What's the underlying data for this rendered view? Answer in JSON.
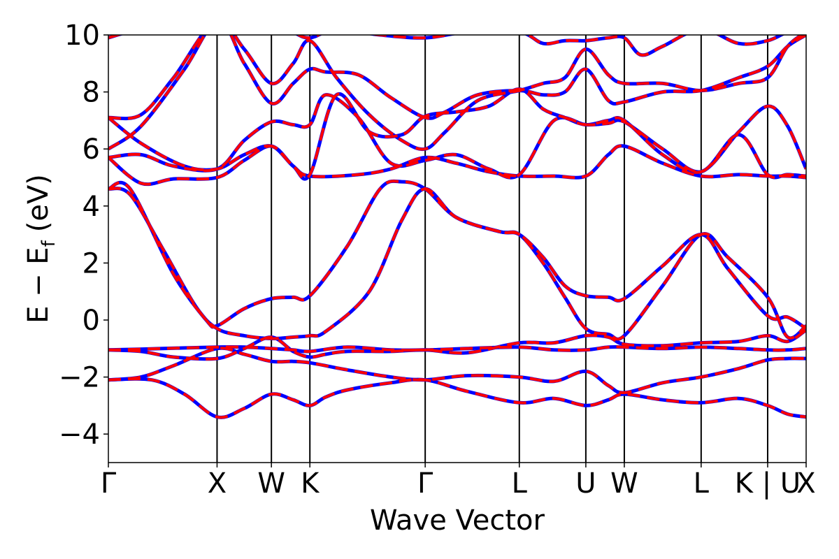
{
  "chart_data": {
    "type": "line",
    "title": "",
    "xlabel": "Wave Vector",
    "ylabel": "E − E_f (eV)",
    "ylabel_parts": {
      "main": "E − E",
      "sub": "f",
      "unit": "(eV)"
    },
    "ylim": [
      -5,
      10
    ],
    "yticks": [
      -4,
      -2,
      0,
      2,
      4,
      6,
      8,
      10
    ],
    "ytick_labels": [
      "−4",
      "−2",
      "0",
      "2",
      "4",
      "6",
      "8",
      "10"
    ],
    "kpoints": [
      {
        "label": "Γ",
        "x": 0.0
      },
      {
        "label": "X",
        "x": 1.0
      },
      {
        "label": "W",
        "x": 1.5
      },
      {
        "label": "K",
        "x": 1.854
      },
      {
        "label": "Γ",
        "x": 2.915
      },
      {
        "label": "L",
        "x": 3.781
      },
      {
        "label": "U",
        "x": 4.393
      },
      {
        "label": "W",
        "x": 4.747
      },
      {
        "label": "L",
        "x": 5.454
      },
      {
        "label": "K | U",
        "x": 6.066
      },
      {
        "label": "X",
        "x": 6.42
      }
    ],
    "xlim": [
      0,
      6.42
    ],
    "series_styles": [
      {
        "color": "#0000ff",
        "width": 5,
        "dash": ""
      },
      {
        "color": "#ff0000",
        "width": 4,
        "dash": "18,10"
      }
    ],
    "bands": [
      [
        [
          0,
          -2.1
        ],
        [
          0.3,
          -2.0
        ],
        [
          0.6,
          -1.6
        ],
        [
          1.0,
          -1.0
        ],
        [
          1.25,
          -1.2
        ],
        [
          1.5,
          -1.45
        ],
        [
          1.7,
          -1.45
        ],
        [
          1.854,
          -1.5
        ],
        [
          2.2,
          -1.75
        ],
        [
          2.6,
          -2.0
        ],
        [
          2.915,
          -2.1
        ],
        [
          3.3,
          -1.95
        ],
        [
          3.781,
          -2.0
        ],
        [
          4.1,
          -2.15
        ],
        [
          4.393,
          -1.8
        ],
        [
          4.6,
          -2.3
        ],
        [
          4.747,
          -2.55
        ],
        [
          5.1,
          -2.2
        ],
        [
          5.454,
          -2.0
        ],
        [
          5.8,
          -1.7
        ],
        [
          6.066,
          -1.4
        ],
        [
          6.25,
          -1.35
        ],
        [
          6.42,
          -1.35
        ]
      ],
      [
        [
          0,
          -2.1
        ],
        [
          0.4,
          -2.1
        ],
        [
          0.7,
          -2.6
        ],
        [
          1.0,
          -3.4
        ],
        [
          1.25,
          -3.1
        ],
        [
          1.5,
          -2.6
        ],
        [
          1.7,
          -2.8
        ],
        [
          1.854,
          -3.0
        ],
        [
          2.0,
          -2.7
        ],
        [
          2.2,
          -2.45
        ],
        [
          2.6,
          -2.2
        ],
        [
          2.915,
          -2.1
        ],
        [
          3.3,
          -2.5
        ],
        [
          3.781,
          -2.9
        ],
        [
          4.1,
          -2.75
        ],
        [
          4.393,
          -3.0
        ],
        [
          4.6,
          -2.8
        ],
        [
          4.747,
          -2.6
        ],
        [
          5.1,
          -2.8
        ],
        [
          5.454,
          -2.9
        ],
        [
          5.8,
          -2.75
        ],
        [
          6.066,
          -3.0
        ],
        [
          6.25,
          -3.3
        ],
        [
          6.42,
          -3.4
        ]
      ],
      [
        [
          0,
          -1.05
        ],
        [
          0.3,
          -1.1
        ],
        [
          0.6,
          -1.3
        ],
        [
          1.0,
          -1.35
        ],
        [
          1.25,
          -1.0
        ],
        [
          1.5,
          -0.6
        ],
        [
          1.7,
          -1.1
        ],
        [
          1.854,
          -1.3
        ],
        [
          2.0,
          -1.2
        ],
        [
          2.2,
          -1.1
        ],
        [
          2.6,
          -1.1
        ],
        [
          2.915,
          -1.05
        ],
        [
          3.3,
          -1.15
        ],
        [
          3.781,
          -0.8
        ],
        [
          4.1,
          -0.8
        ],
        [
          4.393,
          -0.55
        ],
        [
          4.6,
          -0.6
        ],
        [
          4.747,
          -0.85
        ],
        [
          5.1,
          -0.9
        ],
        [
          5.454,
          -0.8
        ],
        [
          5.8,
          -0.75
        ],
        [
          6.066,
          -0.55
        ],
        [
          6.25,
          -0.75
        ],
        [
          6.42,
          -0.35
        ]
      ],
      [
        [
          0,
          -1.05
        ],
        [
          0.5,
          -1.0
        ],
        [
          1.0,
          -0.95
        ],
        [
          1.25,
          -0.95
        ],
        [
          1.5,
          -1.0
        ],
        [
          1.7,
          -1.05
        ],
        [
          1.854,
          -1.1
        ],
        [
          2.2,
          -0.95
        ],
        [
          2.6,
          -1.05
        ],
        [
          2.915,
          -1.05
        ],
        [
          3.3,
          -1.0
        ],
        [
          3.781,
          -0.95
        ],
        [
          4.1,
          -1.05
        ],
        [
          4.393,
          -1.05
        ],
        [
          4.6,
          -0.95
        ],
        [
          4.747,
          -0.95
        ],
        [
          5.1,
          -1.0
        ],
        [
          5.454,
          -0.95
        ],
        [
          5.8,
          -1.0
        ],
        [
          6.066,
          -1.05
        ],
        [
          6.25,
          -1.05
        ],
        [
          6.42,
          -1.0
        ]
      ],
      [
        [
          0,
          4.6
        ],
        [
          0.2,
          4.4
        ],
        [
          0.5,
          2.5
        ],
        [
          0.8,
          0.5
        ],
        [
          1.0,
          -0.3
        ],
        [
          1.25,
          -0.55
        ],
        [
          1.5,
          -0.65
        ],
        [
          1.7,
          -0.6
        ],
        [
          1.854,
          -0.55
        ],
        [
          2.0,
          -0.4
        ],
        [
          2.4,
          1.0
        ],
        [
          2.7,
          3.5
        ],
        [
          2.915,
          4.6
        ],
        [
          3.2,
          3.6
        ],
        [
          3.6,
          3.1
        ],
        [
          3.781,
          3.0
        ],
        [
          4.0,
          2.2
        ],
        [
          4.2,
          1.2
        ],
        [
          4.393,
          0.85
        ],
        [
          4.6,
          0.8
        ],
        [
          4.747,
          0.75
        ],
        [
          5.1,
          1.9
        ],
        [
          5.454,
          3.0
        ],
        [
          5.7,
          1.8
        ],
        [
          6.066,
          0.15
        ],
        [
          6.25,
          0.1
        ],
        [
          6.42,
          -0.3
        ]
      ],
      [
        [
          0,
          4.6
        ],
        [
          0.2,
          4.6
        ],
        [
          0.6,
          1.6
        ],
        [
          0.9,
          0.0
        ],
        [
          1.0,
          -0.2
        ],
        [
          1.25,
          0.4
        ],
        [
          1.5,
          0.75
        ],
        [
          1.7,
          0.8
        ],
        [
          1.854,
          0.85
        ],
        [
          2.2,
          2.6
        ],
        [
          2.5,
          4.6
        ],
        [
          2.7,
          4.85
        ],
        [
          2.915,
          4.6
        ],
        [
          3.2,
          3.6
        ],
        [
          3.6,
          3.1
        ],
        [
          3.781,
          3.0
        ],
        [
          4.0,
          2.0
        ],
        [
          4.2,
          0.8
        ],
        [
          4.393,
          -0.3
        ],
        [
          4.6,
          -0.5
        ],
        [
          4.747,
          -0.55
        ],
        [
          5.1,
          1.2
        ],
        [
          5.454,
          3.0
        ],
        [
          5.7,
          2.2
        ],
        [
          6.066,
          0.8
        ],
        [
          6.25,
          -0.6
        ],
        [
          6.42,
          -0.2
        ]
      ],
      [
        [
          0,
          5.7
        ],
        [
          0.3,
          4.8
        ],
        [
          0.6,
          4.95
        ],
        [
          1.0,
          5.0
        ],
        [
          1.25,
          5.6
        ],
        [
          1.5,
          6.1
        ],
        [
          1.7,
          5.4
        ],
        [
          1.854,
          5.05
        ],
        [
          2.3,
          5.1
        ],
        [
          2.6,
          5.3
        ],
        [
          2.915,
          5.7
        ],
        [
          3.2,
          5.5
        ],
        [
          3.5,
          5.2
        ],
        [
          3.781,
          5.05
        ],
        [
          4.1,
          5.05
        ],
        [
          4.393,
          5.05
        ],
        [
          4.6,
          5.8
        ],
        [
          4.747,
          6.1
        ],
        [
          5.1,
          5.5
        ],
        [
          5.454,
          5.05
        ],
        [
          5.8,
          5.1
        ],
        [
          6.066,
          5.05
        ],
        [
          6.25,
          5.05
        ],
        [
          6.42,
          5.0
        ]
      ],
      [
        [
          0,
          5.7
        ],
        [
          0.3,
          5.8
        ],
        [
          0.6,
          5.4
        ],
        [
          1.0,
          5.3
        ],
        [
          1.25,
          6.3
        ],
        [
          1.5,
          6.95
        ],
        [
          1.7,
          6.85
        ],
        [
          1.854,
          6.85
        ],
        [
          2.0,
          7.9
        ],
        [
          2.3,
          7.1
        ],
        [
          2.6,
          5.5
        ],
        [
          2.915,
          5.6
        ],
        [
          3.2,
          5.8
        ],
        [
          3.5,
          5.3
        ],
        [
          3.781,
          5.1
        ],
        [
          4.1,
          7.0
        ],
        [
          4.393,
          6.85
        ],
        [
          4.6,
          6.9
        ],
        [
          4.747,
          6.95
        ],
        [
          5.1,
          6.0
        ],
        [
          5.454,
          5.2
        ],
        [
          5.8,
          6.5
        ],
        [
          6.066,
          5.1
        ],
        [
          6.25,
          5.1
        ],
        [
          6.42,
          5.05
        ]
      ],
      [
        [
          0,
          6.0
        ],
        [
          0.3,
          6.8
        ],
        [
          0.7,
          8.8
        ],
        [
          1.0,
          10.5
        ],
        [
          1.25,
          9.5
        ],
        [
          1.5,
          8.3
        ],
        [
          1.7,
          9.0
        ],
        [
          1.854,
          9.8
        ],
        [
          2.1,
          8.5
        ],
        [
          2.4,
          7.2
        ],
        [
          2.7,
          6.3
        ],
        [
          2.915,
          6.0
        ],
        [
          3.1,
          6.6
        ],
        [
          3.4,
          7.7
        ],
        [
          3.781,
          8.05
        ],
        [
          4.0,
          8.3
        ],
        [
          4.2,
          8.5
        ],
        [
          4.393,
          9.5
        ],
        [
          4.6,
          8.6
        ],
        [
          4.747,
          8.3
        ],
        [
          5.1,
          8.3
        ],
        [
          5.454,
          8.05
        ],
        [
          5.8,
          8.3
        ],
        [
          6.066,
          8.5
        ],
        [
          6.25,
          9.6
        ],
        [
          6.42,
          10.1
        ]
      ],
      [
        [
          0,
          7.1
        ],
        [
          0.3,
          7.2
        ],
        [
          0.6,
          8.5
        ],
        [
          1.0,
          10.5
        ],
        [
          1.25,
          9.0
        ],
        [
          1.5,
          7.6
        ],
        [
          1.7,
          8.3
        ],
        [
          1.854,
          8.8
        ],
        [
          2.0,
          8.7
        ],
        [
          2.3,
          8.6
        ],
        [
          2.6,
          7.8
        ],
        [
          2.915,
          7.1
        ],
        [
          3.1,
          7.3
        ],
        [
          3.4,
          7.9
        ],
        [
          3.781,
          8.05
        ],
        [
          4.0,
          7.9
        ],
        [
          4.2,
          8.0
        ],
        [
          4.393,
          8.8
        ],
        [
          4.6,
          7.7
        ],
        [
          4.747,
          7.65
        ],
        [
          5.1,
          8.0
        ],
        [
          5.454,
          8.05
        ],
        [
          5.8,
          8.5
        ],
        [
          6.066,
          8.9
        ],
        [
          6.25,
          9.6
        ],
        [
          6.42,
          10.0
        ]
      ],
      [
        [
          0,
          7.1
        ],
        [
          0.3,
          6.2
        ],
        [
          0.7,
          5.4
        ],
        [
          1.0,
          5.3
        ],
        [
          1.25,
          5.8
        ],
        [
          1.5,
          6.1
        ],
        [
          1.7,
          5.4
        ],
        [
          1.854,
          5.1
        ],
        [
          2.1,
          7.9
        ],
        [
          2.4,
          6.6
        ],
        [
          2.7,
          6.5
        ],
        [
          2.915,
          7.15
        ],
        [
          3.2,
          7.3
        ],
        [
          3.5,
          7.5
        ],
        [
          3.781,
          8.1
        ],
        [
          4.0,
          7.4
        ],
        [
          4.2,
          7.1
        ],
        [
          4.393,
          6.85
        ],
        [
          4.6,
          7.0
        ],
        [
          4.747,
          7.0
        ],
        [
          5.1,
          5.8
        ],
        [
          5.454,
          5.2
        ],
        [
          5.8,
          6.6
        ],
        [
          6.066,
          7.5
        ],
        [
          6.25,
          6.8
        ],
        [
          6.42,
          5.3
        ]
      ],
      [
        [
          0,
          9.9
        ],
        [
          0.3,
          10.2
        ],
        [
          1.0,
          10.6
        ],
        [
          1.5,
          10.5
        ],
        [
          1.7,
          10.1
        ],
        [
          1.854,
          9.9
        ],
        [
          2.1,
          10.2
        ],
        [
          2.5,
          10.0
        ],
        [
          2.915,
          9.9
        ],
        [
          3.3,
          10.1
        ],
        [
          3.781,
          10.1
        ],
        [
          4.0,
          9.7
        ],
        [
          4.2,
          9.8
        ],
        [
          4.393,
          9.8
        ],
        [
          4.6,
          9.9
        ],
        [
          4.747,
          9.9
        ],
        [
          4.9,
          9.3
        ],
        [
          5.1,
          9.6
        ],
        [
          5.454,
          10.2
        ],
        [
          5.8,
          9.7
        ],
        [
          6.066,
          9.8
        ],
        [
          6.25,
          10.1
        ],
        [
          6.42,
          10.2
        ]
      ]
    ]
  }
}
